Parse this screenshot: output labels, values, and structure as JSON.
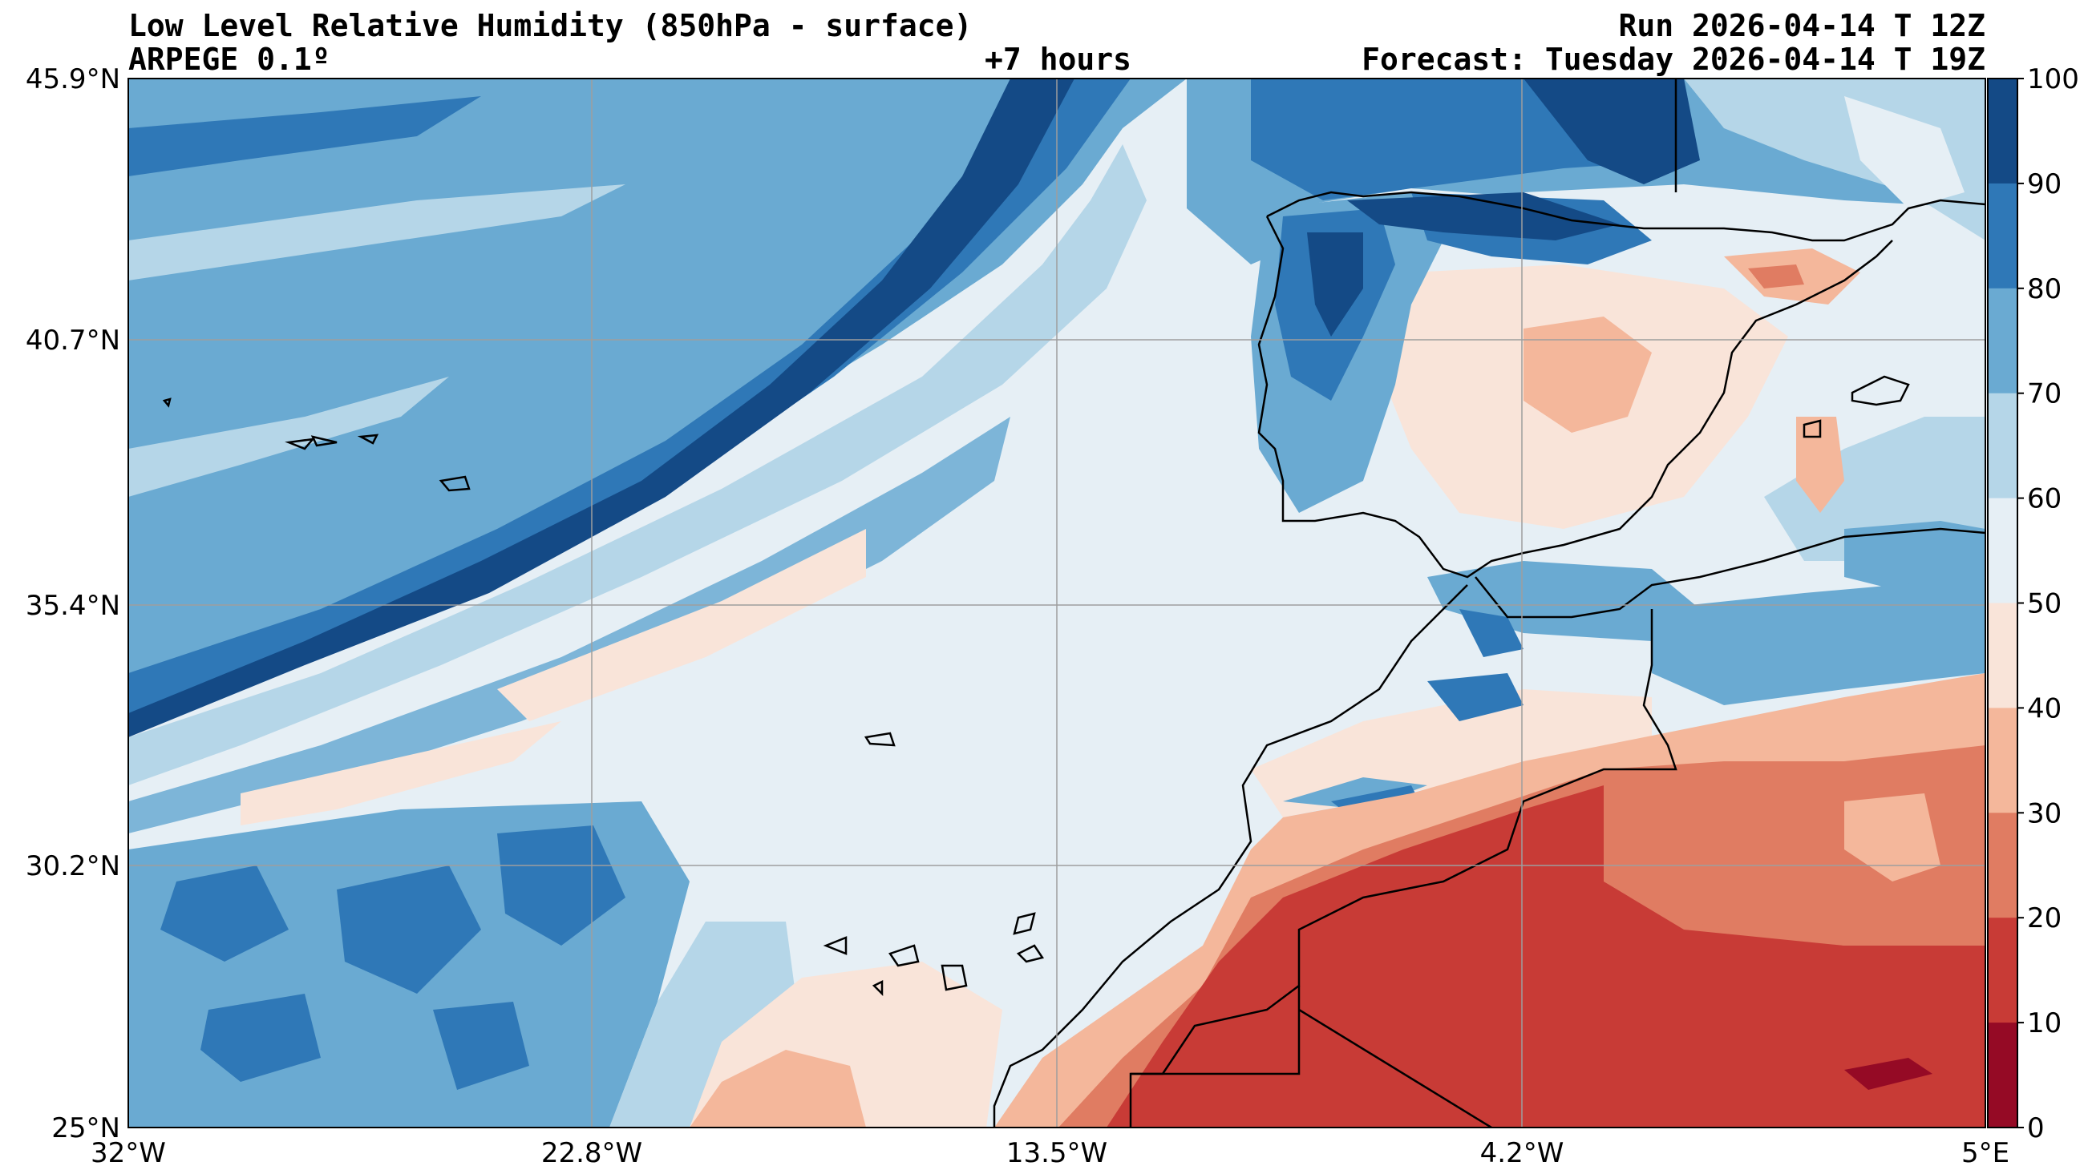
{
  "header": {
    "title": "Low Level Relative Humidity (850hPa - surface)",
    "model": "ARPEGE 0.1º",
    "lead_time": "+7 hours",
    "run": "Run 2026-04-14 T 12Z",
    "forecast": "Forecast: Tuesday 2026-04-14 T 19Z"
  },
  "axes": {
    "lat_ticks": [
      "45.9°N",
      "40.7°N",
      "35.4°N",
      "30.2°N",
      "25°N"
    ],
    "lon_ticks": [
      "32°W",
      "22.8°W",
      "13.5°W",
      "4.2°W",
      "5°E"
    ]
  },
  "colorbar": {
    "ticks": [
      "100",
      "90",
      "80",
      "70",
      "60",
      "50",
      "40",
      "30",
      "20",
      "10",
      "0"
    ],
    "colors": [
      "#144a86",
      "#2f78b7",
      "#6aaad2",
      "#b5d6e8",
      "#e6eff5",
      "#f9e4d9",
      "#f4b79b",
      "#e07c62",
      "#c83b36",
      "#950a25"
    ],
    "bands": [
      "90-100",
      "80-90",
      "70-80",
      "60-70",
      "50-60",
      "40-50",
      "30-40",
      "20-30",
      "10-20",
      "0-10"
    ]
  },
  "map": {
    "region": "Iberian Peninsula, Northwest Africa and Eastern Atlantic",
    "gridlines": true
  }
}
